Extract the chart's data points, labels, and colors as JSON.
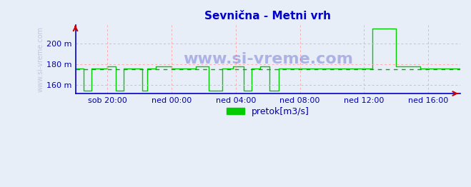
{
  "title": "Sevnična - Metni vrh",
  "xlabel": "",
  "ylabel": "",
  "bg_color": "#e8eef8",
  "plot_bg_color": "#e8eef8",
  "line_color": "#00cc00",
  "axis_color": "#0000cc",
  "title_color": "#0000cc",
  "tick_label_color": "#0000aa",
  "grid_color": "#ffaaaa",
  "mean_line_color": "#00aa00",
  "ylim": [
    152,
    218
  ],
  "yticks": [
    160,
    180,
    200
  ],
  "ytick_labels": [
    "160 m",
    "180 m",
    "200 m"
  ],
  "xlim": [
    0,
    288
  ],
  "xticks": [
    24,
    72,
    120,
    168,
    216,
    264
  ],
  "xtick_labels": [
    "sob 20:00",
    "ned 00:00",
    "ned 04:00",
    "ned 08:00",
    "ned 12:00",
    "ned 16:00"
  ],
  "mean_y": 175.5,
  "legend_label": "pretok[m3/s]",
  "legend_color": "#00cc00",
  "watermark": "www.si-vreme.com",
  "x_data": [
    0,
    0,
    6,
    6,
    12,
    12,
    18,
    18,
    24,
    24,
    30,
    30,
    36,
    36,
    42,
    42,
    50,
    50,
    54,
    54,
    60,
    60,
    72,
    72,
    90,
    90,
    100,
    100,
    110,
    110,
    118,
    118,
    126,
    126,
    132,
    132,
    138,
    138,
    145,
    145,
    152,
    152,
    160,
    160,
    168,
    168,
    180,
    180,
    192,
    192,
    200,
    200,
    210,
    210,
    218,
    218,
    222,
    222,
    228,
    228,
    240,
    240,
    252,
    252,
    258,
    258,
    268,
    268,
    272,
    272,
    276,
    276,
    284,
    284,
    288
  ],
  "y_data": [
    176,
    176,
    176,
    155,
    155,
    176,
    176,
    176,
    176,
    178,
    178,
    155,
    155,
    176,
    176,
    176,
    176,
    155,
    155,
    176,
    176,
    178,
    178,
    176,
    176,
    178,
    178,
    155,
    155,
    176,
    176,
    178,
    178,
    155,
    155,
    176,
    176,
    178,
    178,
    155,
    155,
    176,
    176,
    176,
    176,
    176,
    176,
    176,
    176,
    176,
    176,
    176,
    176,
    176,
    176,
    176,
    176,
    215,
    215,
    215,
    215,
    178,
    178,
    178,
    178,
    176,
    176,
    176,
    176,
    176,
    176,
    176,
    176,
    176,
    176
  ]
}
